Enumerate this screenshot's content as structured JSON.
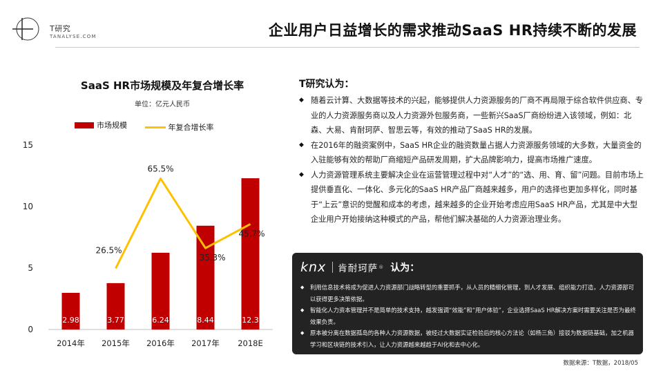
{
  "header": {
    "brand": "T研究",
    "brand_sub": "TANALYSE.COM",
    "title": "企业用户日益增长的需求推动SaaS HR持续不断的发展"
  },
  "chart_data": {
    "type": "bar",
    "title": "SaaS HR市场规模及年复合增长率",
    "unit": "单位：亿元人民币",
    "categories": [
      "2014年",
      "2015年",
      "2016年",
      "2017年",
      "2018E"
    ],
    "ylim": [
      0,
      15
    ],
    "yticks": [
      "0",
      "5",
      "10",
      "15"
    ],
    "series": [
      {
        "name": "市场规模",
        "kind": "bar",
        "color": "#c00000",
        "values": [
          2.98,
          3.77,
          6.24,
          8.44,
          12.3
        ],
        "labels": [
          "2.98",
          "3.77",
          "6.24",
          "8.44",
          "12.3"
        ]
      },
      {
        "name": "年复合增长率",
        "kind": "line",
        "color": "#ffc000",
        "values": [
          null,
          26.5,
          65.5,
          35.3,
          45.7
        ],
        "labels": [
          "",
          "26.5%",
          "65.5%",
          "35.3%",
          "45.7%"
        ]
      }
    ],
    "line_range": [
      0,
      80
    ],
    "grid": false,
    "legend": "top"
  },
  "opinion": {
    "title": "T研究认为：",
    "items": [
      "随着云计算、大数据等技术的兴起，能够提供人力资源服务的厂商不再局限于综合软件供应商、专业的人力资源服务商以及人力资源外包服务商，一些新兴SaaS厂商纷纷进入该领域，例如：北森、大易、肯耐珂萨、智思云等，有效的推动了SaaS HR的发展。",
      "在2016年的融资案例中，SaaS HR企业的融资数量占据人力资源服务领域的大多数，大量资金的入驻能够有效的帮助厂商缩短产品研发周期，扩大品牌影响力，提高市场推广速度。",
      "人力资源管理系统主要解决企业在运营管理过程中对“人才”的“选、用、育、留”问题。目前市场上提供垂直化、一体化、多元化的SaaS HR产品厂商越来越多，用户的选择也更加多样化，同时基于“上云”意识的觉醒和成本的考虑，越来越多的企业开始考虑应用SaaS HR产品，尤其是中大型企业用户开始接纳这种模式的产品，帮他们解决基础的人力资源治理业务。"
    ]
  },
  "knx": {
    "logo": "knx",
    "name": "肯耐珂萨",
    "reg": "®",
    "says": "认为：",
    "items": [
      "利用信息技术将成为促进人力资源部门战略转型的重要抓手，从人员的精细化管理，到人才发展、组织能力打造，人力资源部可以获得更多决策依据。",
      "智能化人力资本管理并不是简单的技术支持，越发强调“效能”和“用户体验”，企业选择SaaS HR解决方案时需要关注是否为最终效果负责。",
      "原本被分离在数据孤岛的各种人力资源数据，被经过大数据实证检验后的核心方法论（如杨三角）接驳为数据链基础，加之机器学习和区块链的技术引入，让人力资源越来越趋于AI化和去中心化。"
    ]
  },
  "source": "数据来源：T数据，2018/05"
}
